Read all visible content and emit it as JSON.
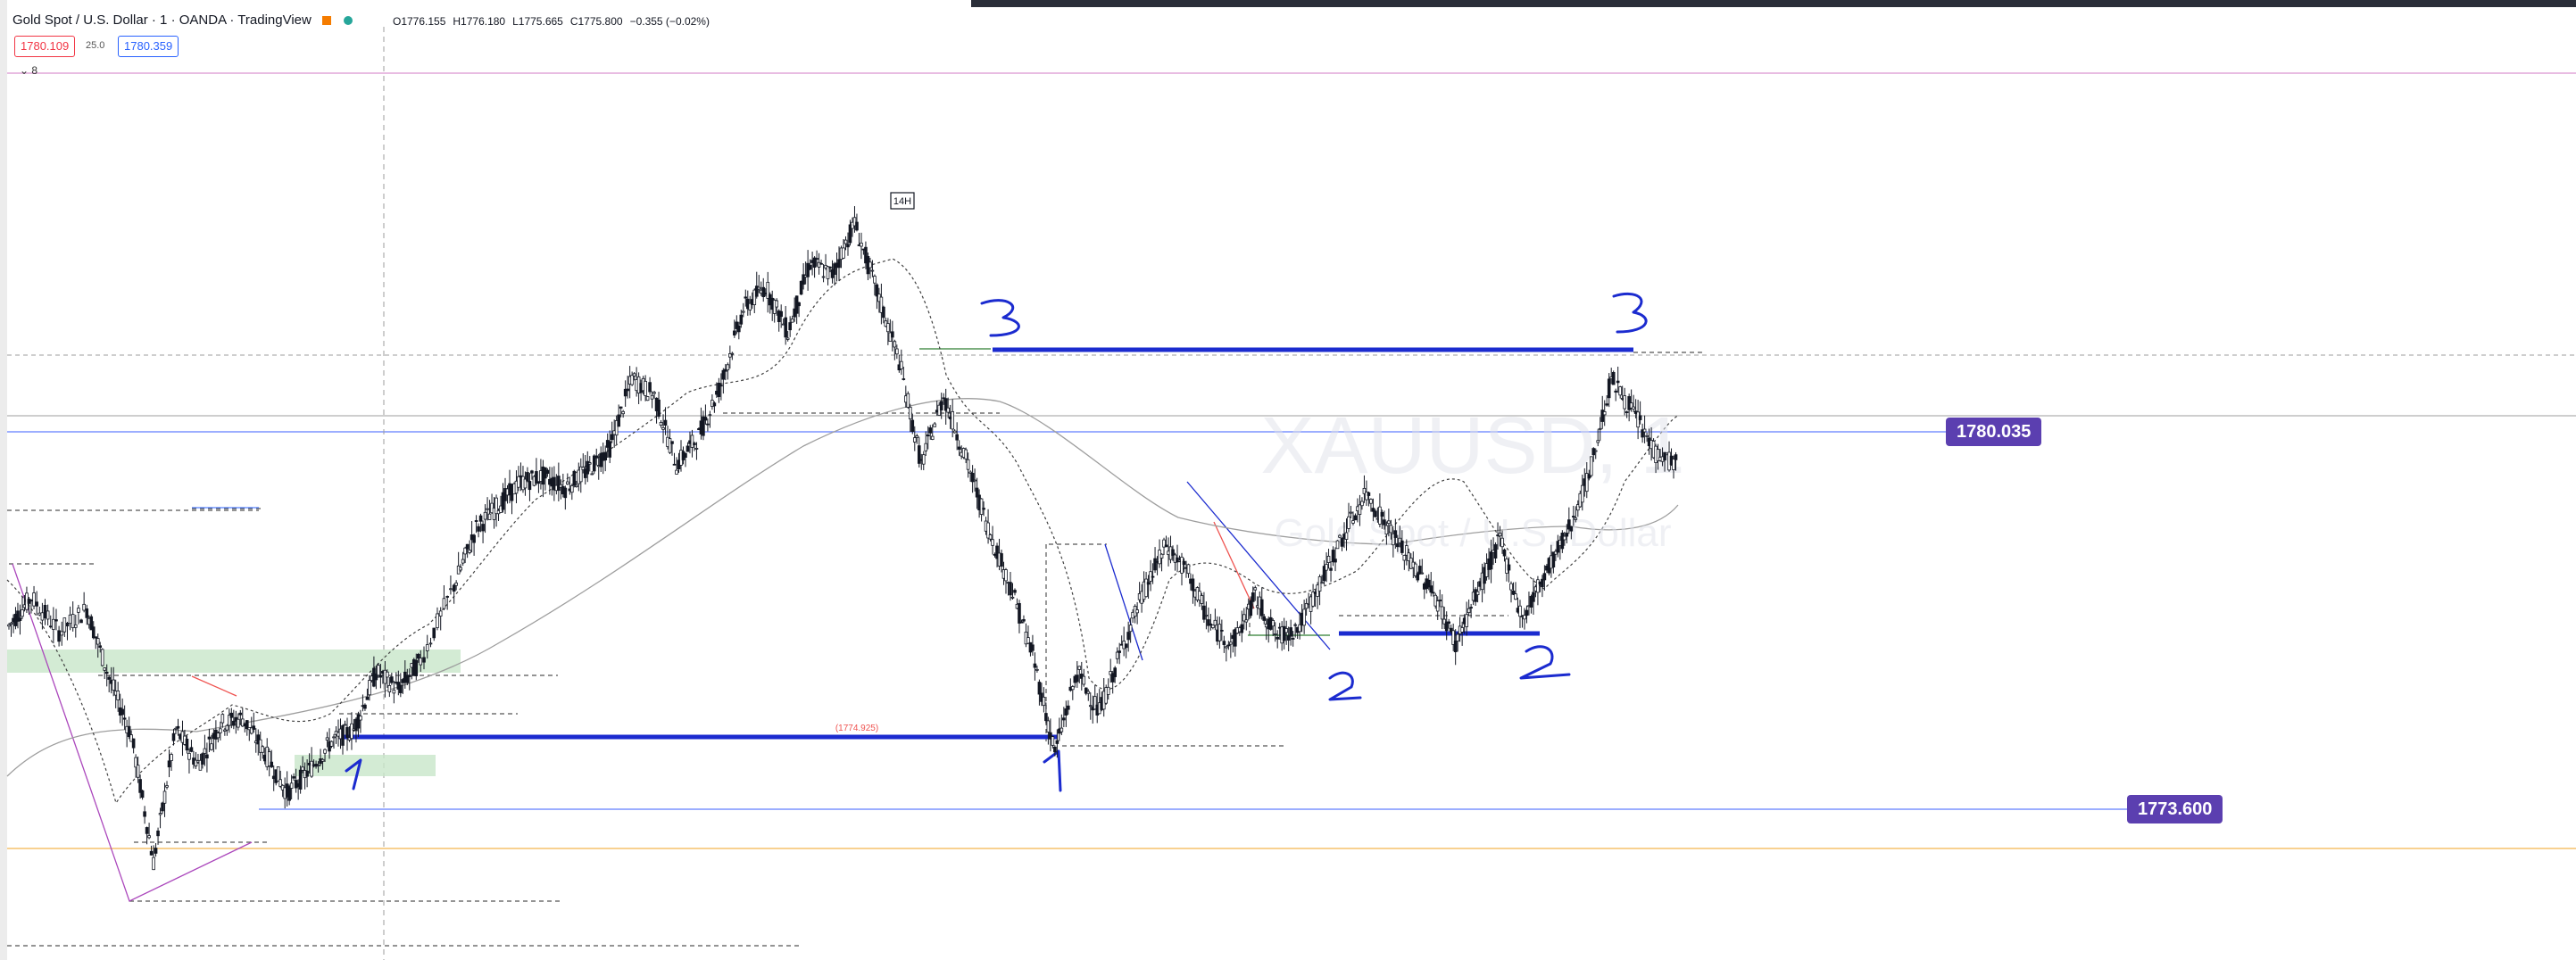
{
  "legend": {
    "title": "Gold Spot / U.S. Dollar · 1 · OANDA · TradingView",
    "ohlc": {
      "open": "O1776.155",
      "high": "H1776.180",
      "low": "L1775.665",
      "close": "C1775.800",
      "change": "−0.355 (−0.02%)"
    },
    "bid": "1780.109",
    "spread": "25.0",
    "ask": "1780.359",
    "collapse": "⌄ 8",
    "flag_icon": "flag-icon",
    "status_icon": "status-dot-icon"
  },
  "watermark": {
    "symbol": "XAUUSD, 1",
    "subtitle": "Gold Spot / U.S. Dollar"
  },
  "price_tags": {
    "upper": "1780.035",
    "lower": "1773.600"
  },
  "annotations": {
    "label_14h": "14H",
    "small_label": "(1774.925)",
    "numbers": [
      "1",
      "1",
      "2",
      "2",
      "3",
      "3"
    ]
  },
  "colors": {
    "up": "#26a69a",
    "down": "#ef5350",
    "candle": "#131722",
    "annot": "#1b2bcf",
    "tag": "#5b3fb0"
  },
  "chart_data": {
    "type": "candlestick",
    "symbol": "XAUUSD",
    "timeframe": "1",
    "ylim": [
      1771.5,
      1786.0
    ],
    "x": [
      0,
      1500
    ],
    "series": [
      {
        "values": [
          [
            0,
            1777.3
          ],
          [
            20,
            1777.8
          ],
          [
            45,
            1777.2
          ],
          [
            70,
            1777.6
          ],
          [
            90,
            1776.4
          ],
          [
            110,
            1775.4
          ],
          [
            130,
            1773.2
          ],
          [
            150,
            1775.5
          ],
          [
            170,
            1774.9
          ],
          [
            190,
            1775.6
          ],
          [
            210,
            1775.7
          ],
          [
            230,
            1775.1
          ],
          [
            250,
            1774.4
          ],
          [
            270,
            1774.8
          ],
          [
            290,
            1775.3
          ],
          [
            310,
            1775.5
          ],
          [
            330,
            1776.5
          ],
          [
            350,
            1776.2
          ],
          [
            370,
            1776.7
          ],
          [
            400,
            1778.0
          ],
          [
            420,
            1779.0
          ],
          [
            440,
            1779.4
          ],
          [
            460,
            1779.8
          ],
          [
            480,
            1779.9
          ],
          [
            500,
            1779.7
          ],
          [
            520,
            1780.0
          ],
          [
            540,
            1780.4
          ],
          [
            560,
            1781.6
          ],
          [
            580,
            1781.3
          ],
          [
            600,
            1780.1
          ],
          [
            620,
            1780.6
          ],
          [
            640,
            1781.5
          ],
          [
            660,
            1782.8
          ],
          [
            680,
            1783.2
          ],
          [
            700,
            1782.4
          ],
          [
            720,
            1783.6
          ],
          [
            740,
            1783.4
          ],
          [
            760,
            1784.3
          ],
          [
            780,
            1783.1
          ],
          [
            800,
            1781.9
          ],
          [
            820,
            1780.1
          ],
          [
            840,
            1781.3
          ],
          [
            860,
            1780.2
          ],
          [
            880,
            1779.0
          ],
          [
            900,
            1778.0
          ],
          [
            920,
            1776.8
          ],
          [
            940,
            1775.1
          ],
          [
            960,
            1776.5
          ],
          [
            980,
            1775.8
          ],
          [
            1000,
            1776.9
          ],
          [
            1020,
            1777.9
          ],
          [
            1040,
            1778.7
          ],
          [
            1060,
            1778.2
          ],
          [
            1080,
            1777.3
          ],
          [
            1100,
            1777.0
          ],
          [
            1120,
            1777.8
          ],
          [
            1140,
            1777.1
          ],
          [
            1160,
            1777.3
          ],
          [
            1180,
            1778.1
          ],
          [
            1200,
            1778.9
          ],
          [
            1220,
            1779.6
          ],
          [
            1240,
            1779.0
          ],
          [
            1260,
            1778.4
          ],
          [
            1280,
            1777.9
          ],
          [
            1300,
            1777.0
          ],
          [
            1320,
            1777.9
          ],
          [
            1340,
            1778.8
          ],
          [
            1360,
            1777.4
          ],
          [
            1380,
            1778.2
          ],
          [
            1400,
            1778.9
          ],
          [
            1420,
            1779.9
          ],
          [
            1440,
            1781.6
          ],
          [
            1460,
            1781.0
          ],
          [
            1480,
            1780.3
          ],
          [
            1500,
            1780.1
          ]
        ]
      }
    ]
  }
}
